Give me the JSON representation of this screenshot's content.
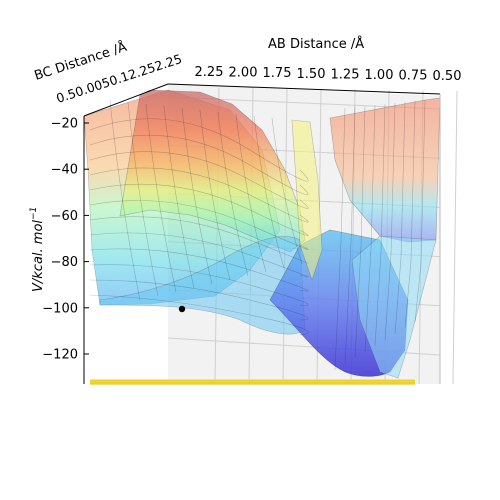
{
  "chart_data": {
    "type": "surface3d",
    "title": "",
    "x_axis": {
      "label": "AB Distance /Å",
      "ticks": [
        "2.25",
        "2.00",
        "1.75",
        "1.50",
        "1.25",
        "1.00",
        "0.75",
        "0.50"
      ]
    },
    "y_axis": {
      "label": "BC Distance /Å",
      "ticks": [
        "2.25",
        "2.00",
        "1.75",
        "1.50",
        "1.25",
        "1.00",
        "0.75",
        "0.50"
      ],
      "visible_tick_text": "0.50.0050.12.252.25"
    },
    "z_axis": {
      "label": "V/kcal. mol",
      "label_exponent": "−1",
      "ticks": [
        "−20",
        "−40",
        "−60",
        "−80",
        "−100",
        "−120"
      ],
      "range": [
        -135,
        -20
      ]
    },
    "colormap": "jet",
    "marker": {
      "shape": "dot",
      "color": "#000000",
      "value_z": -102
    },
    "contour_projection": {
      "color": "#f2e22a"
    },
    "grid": true
  }
}
